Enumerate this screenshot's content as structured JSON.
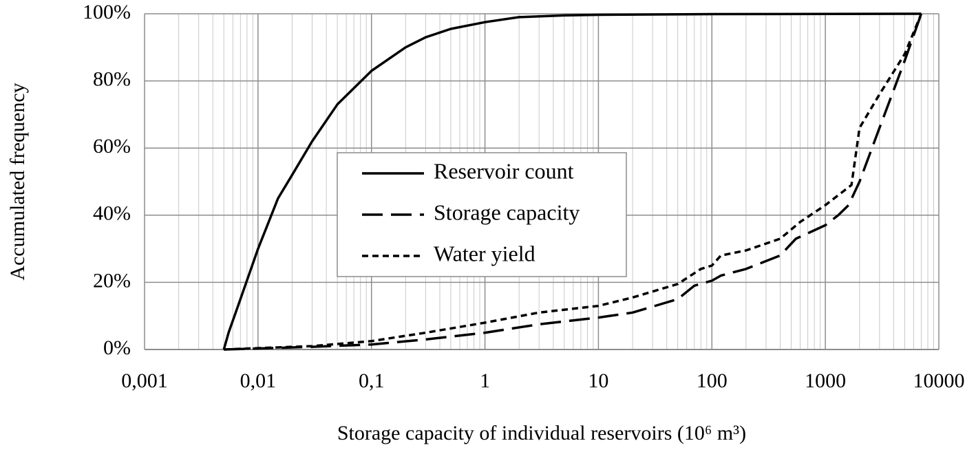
{
  "chart_data": {
    "type": "line",
    "xlabel": "Storage capacity of individual reservoirs (10⁶ m³)",
    "ylabel": "Accumulated frequency",
    "xscale": "log",
    "xlim": [
      0.001,
      10000
    ],
    "xticks": [
      {
        "value": 0.001,
        "label": "0,001"
      },
      {
        "value": 0.01,
        "label": "0,01"
      },
      {
        "value": 0.1,
        "label": "0,1"
      },
      1,
      10,
      100,
      1000,
      10000
    ],
    "ylim": [
      0,
      100
    ],
    "yticks": [
      {
        "value": 0,
        "label": "0%"
      },
      {
        "value": 20,
        "label": "20%"
      },
      {
        "value": 40,
        "label": "40%"
      },
      {
        "value": 60,
        "label": "60%"
      },
      {
        "value": 80,
        "label": "80%"
      },
      {
        "value": 100,
        "label": "100%"
      }
    ],
    "grid": true,
    "minor_grid": true,
    "legend": "center",
    "series": [
      {
        "name": "Reservoir count",
        "color": "#000000",
        "line_style": "solid",
        "x": [
          0.005,
          0.0055,
          0.007,
          0.01,
          0.015,
          0.02,
          0.03,
          0.05,
          0.1,
          0.2,
          0.3,
          0.5,
          1,
          2,
          5,
          10,
          100,
          7000
        ],
        "values": [
          0,
          5,
          15,
          30,
          45,
          52,
          62,
          73,
          83,
          90,
          93,
          95.5,
          97.5,
          99,
          99.5,
          99.7,
          99.9,
          100
        ]
      },
      {
        "name": "Storage capacity",
        "color": "#000000",
        "line_style": "dashed",
        "x": [
          0.005,
          0.01,
          0.03,
          0.1,
          0.3,
          1,
          3,
          10,
          20,
          50,
          70,
          100,
          120,
          200,
          400,
          550,
          1000,
          1300,
          1600,
          2000,
          3000,
          5000,
          7000
        ],
        "values": [
          0,
          0.3,
          0.8,
          1.5,
          3,
          5,
          7.5,
          9.5,
          11,
          15,
          19,
          20.5,
          22,
          24,
          28,
          33,
          37,
          40,
          43,
          50,
          66,
          86,
          100
        ]
      },
      {
        "name": "Water yield",
        "color": "#000000",
        "line_style": "dotted",
        "x": [
          0.005,
          0.01,
          0.03,
          0.1,
          0.3,
          1,
          3,
          10,
          20,
          50,
          80,
          100,
          120,
          200,
          400,
          600,
          1000,
          1700,
          2000,
          3000,
          5000,
          7000
        ],
        "values": [
          0,
          0.4,
          1,
          2.5,
          5,
          8,
          11,
          13,
          15.5,
          19.5,
          24,
          25,
          28,
          29.5,
          33,
          38,
          43,
          49,
          66,
          76,
          88,
          100
        ]
      }
    ]
  }
}
